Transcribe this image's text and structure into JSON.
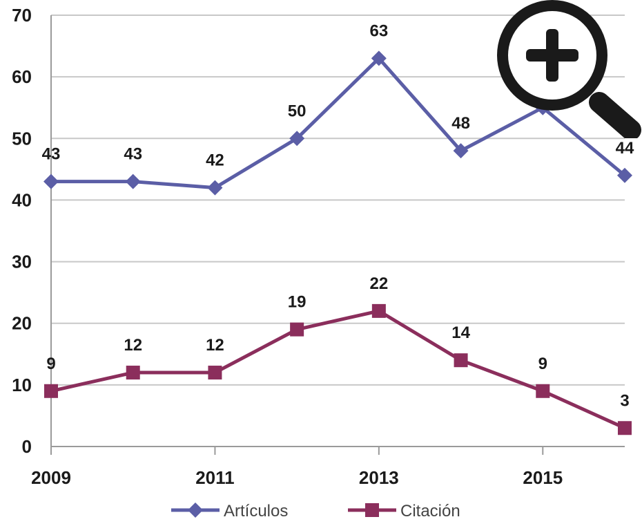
{
  "chart_data": {
    "type": "line",
    "x": [
      2009,
      2010,
      2011,
      2012,
      2013,
      2014,
      2015,
      2016
    ],
    "x_tick_labels": [
      "2009",
      "2011",
      "2013",
      "2015"
    ],
    "y_ticks": [
      "0",
      "10",
      "20",
      "30",
      "40",
      "50",
      "60",
      "70"
    ],
    "ylim": [
      0,
      70
    ],
    "grid": true,
    "legend_position": "bottom",
    "series": [
      {
        "name": "Artículos",
        "values": [
          43,
          43,
          42,
          50,
          63,
          48,
          55,
          44
        ],
        "labels": [
          "43",
          "43",
          "42",
          "50",
          "63",
          "48",
          "",
          "44"
        ],
        "color": "#5b5ea6",
        "marker": "diamond"
      },
      {
        "name": "Citación",
        "values": [
          9,
          12,
          12,
          19,
          22,
          14,
          9,
          3
        ],
        "labels": [
          "9",
          "12",
          "12",
          "19",
          "22",
          "14",
          "9",
          "3"
        ],
        "color": "#8b2e5c",
        "marker": "square"
      }
    ]
  },
  "overlay": {
    "icon": "zoom-in-magnifier-icon"
  }
}
